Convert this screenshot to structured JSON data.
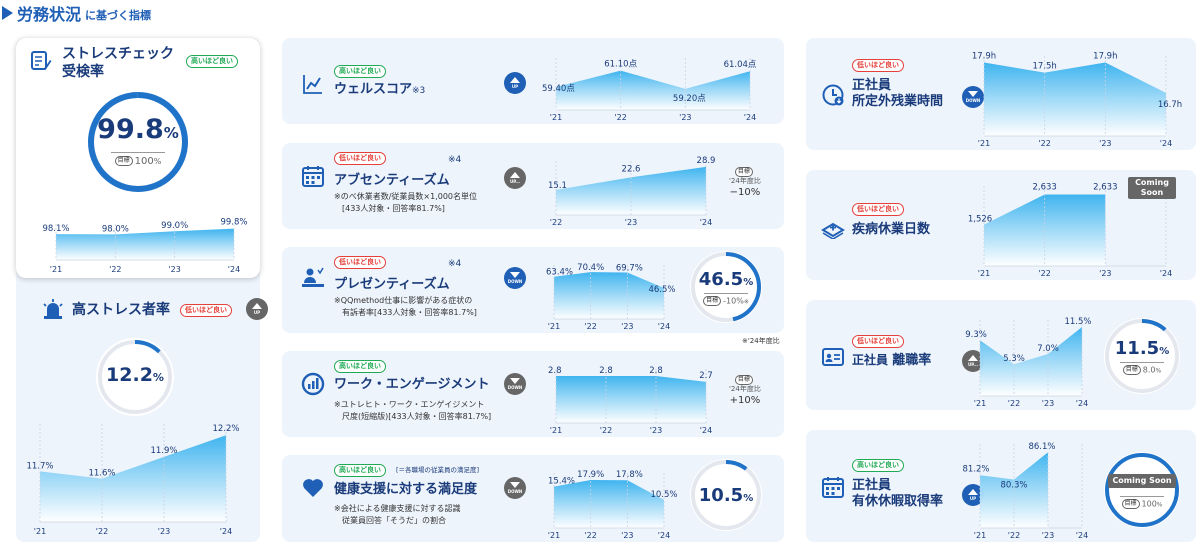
{
  "header": {
    "title": "労務状況",
    "suffix": "に基づく指標"
  },
  "years": [
    "'21",
    "'22",
    "'23",
    "'24"
  ],
  "goal_label": "目標",
  "cards": {
    "stress_check": {
      "title1": "ストレスチェック",
      "title2": "受検率",
      "badge": "高いほど良い",
      "value": "99.8",
      "unit": "%",
      "goal": "100",
      "goal_unit": "%",
      "chart_data": {
        "type": "area",
        "x": [
          "'21",
          "'22",
          "'23",
          "'24"
        ],
        "values": [
          98.1,
          98.0,
          99.0,
          99.8
        ],
        "labels": [
          "98.1%",
          "98.0%",
          "99.0%",
          "99.8%"
        ],
        "ylim": [
          90,
          100
        ]
      }
    },
    "high_stress": {
      "title": "高ストレス者率",
      "badge": "低いほど良い",
      "trend": "UP",
      "value": "12.2",
      "unit": "%",
      "chart_data": {
        "type": "area",
        "x": [
          "'21",
          "'22",
          "'23",
          "'24"
        ],
        "values": [
          11.7,
          11.6,
          11.9,
          12.2
        ],
        "labels": [
          "11.7%",
          "11.6%",
          "11.9%",
          "12.2%"
        ],
        "ylim": [
          11,
          12.3
        ]
      }
    },
    "wellness": {
      "title": "ウェルスコア",
      "sup": "※3",
      "badge": "高いほど良い",
      "trend": "UP",
      "chart_data": {
        "type": "area",
        "x": [
          "'21",
          "'22",
          "'23",
          "'24"
        ],
        "values": [
          59.4,
          61.1,
          59.2,
          61.04
        ],
        "labels": [
          "59.40点",
          "61.10点",
          "59.20点",
          "61.04点"
        ],
        "ylim": [
          57,
          62
        ]
      }
    },
    "absenteeism": {
      "title": "アブセンティーズム",
      "sup": "※4",
      "badge": "低いほど良い",
      "trend": "UP...",
      "note1": "※のべ休業者数/従業員数×1,000名単位",
      "note2": "[433人対象・回答率81.7%]",
      "cmp_line1": "'24年度比",
      "cmp_line2": "−10%",
      "chart_data": {
        "type": "area",
        "x": [
          "'22",
          "'23",
          "'24"
        ],
        "values": [
          15.1,
          22.6,
          28.9
        ],
        "labels": [
          "15.1",
          "22.6",
          "28.9"
        ],
        "ylim": [
          0,
          30
        ]
      }
    },
    "presenteeism": {
      "title": "プレゼンティーズム",
      "sup": "※4",
      "badge": "低いほど良い",
      "trend": "DOWN",
      "note1": "※QQmethod仕事に影響がある症状の",
      "note2": "有訴者率[433人対象・回答率81.7%]",
      "value": "46.5",
      "unit": "%",
      "goal_text": "-10%",
      "goal_ast": "※",
      "footnote": "※'24年度比",
      "chart_data": {
        "type": "area",
        "x": [
          "'21",
          "'22",
          "'23",
          "'24"
        ],
        "values": [
          63.4,
          70.4,
          69.7,
          46.5
        ],
        "labels": [
          "63.4%",
          "70.4%",
          "69.7%",
          "46.5%"
        ],
        "ylim": [
          0,
          75
        ]
      }
    },
    "engagement": {
      "title": "ワーク・エンゲージメント",
      "badge": "高いほど良い",
      "trend": "DOWN",
      "note1": "※ユトレヒト・ワーク・エンゲイジメント",
      "note2": "尺度(短縮版)[433人対象・回答率81.7%]",
      "cmp_line1": "'24年度比",
      "cmp_line2": "+10%",
      "chart_data": {
        "type": "area",
        "x": [
          "'21",
          "'22",
          "'23",
          "'24"
        ],
        "values": [
          2.8,
          2.8,
          2.8,
          2.7
        ],
        "labels": [
          "2.8",
          "2.8",
          "2.8",
          "2.7"
        ],
        "ylim": [
          2,
          2.85
        ]
      }
    },
    "satisfaction": {
      "title": "健康支援に対する満足度",
      "badge": "高いほど良い",
      "badge2": "[＝各職場の従業員の満足度]",
      "trend": "DOWN",
      "note1": "※会社による健康支援に対する認識",
      "note2": "従業員回答「そうだ」の割合",
      "value": "10.5",
      "unit": "%",
      "chart_data": {
        "type": "area",
        "x": [
          "'21",
          "'22",
          "'23",
          "'24"
        ],
        "values": [
          15.4,
          17.9,
          17.8,
          10.5
        ],
        "labels": [
          "15.4%",
          "17.9%",
          "17.8%",
          "10.5%"
        ],
        "ylim": [
          0,
          19
        ]
      }
    },
    "overtime": {
      "title1": "正社員",
      "title2": "所定外残業時間",
      "badge": "低いほど良い",
      "trend": "DOWN",
      "chart_data": {
        "type": "area",
        "x": [
          "'21",
          "'22",
          "'23",
          "'24"
        ],
        "values": [
          17.9,
          17.5,
          17.9,
          16.7
        ],
        "labels": [
          "17.9h",
          "17.5h",
          "17.9h",
          "16.7h"
        ],
        "ylim": [
          15,
          18
        ]
      }
    },
    "sick_leave": {
      "title": "疾病休業日数",
      "badge": "低いほど良い",
      "coming_soon": "Coming Soon",
      "chart_data": {
        "type": "area",
        "x": [
          "'21",
          "'22",
          "'23",
          "'24"
        ],
        "values": [
          1526,
          2633,
          2633
        ],
        "labels": [
          "1,526",
          "2,633",
          "2,633"
        ],
        "ylim": [
          0,
          2800
        ]
      }
    },
    "turnover": {
      "title": "正社員",
      "title_b": "離職率",
      "badge": "低いほど良い",
      "trend": "UP...",
      "value": "11.5",
      "unit": "%",
      "goal": "8.0",
      "goal_unit": "%",
      "chart_data": {
        "type": "area",
        "x": [
          "'21",
          "'22",
          "'23",
          "'24"
        ],
        "values": [
          9.3,
          5.3,
          7.0,
          11.5
        ],
        "labels": [
          "9.3%",
          "5.3%",
          "7.0%",
          "11.5%"
        ],
        "ylim": [
          0,
          12
        ]
      }
    },
    "paid_leave": {
      "title1": "正社員",
      "title2": "有休休暇取得率",
      "badge": "高いほど良い",
      "trend": "UP",
      "coming_soon": "Coming Soon",
      "goal": "100",
      "goal_unit": "%",
      "chart_data": {
        "type": "area",
        "x": [
          "'21",
          "'22",
          "'23",
          "'24"
        ],
        "values": [
          81.2,
          80.3,
          86.1
        ],
        "labels": [
          "81.2%",
          "80.3%",
          "86.1%"
        ],
        "ylim": [
          70,
          87
        ]
      }
    }
  }
}
